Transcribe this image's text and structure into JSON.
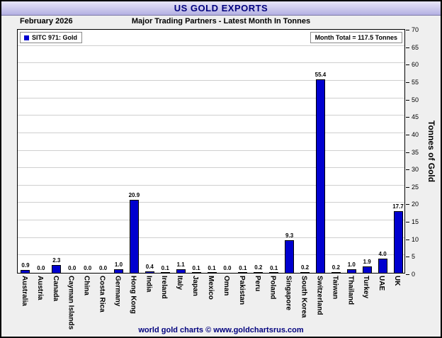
{
  "header": {
    "title": "US GOLD EXPORTS",
    "date": "February 2026",
    "subtitle": "Major Trading Partners - Latest Month In Tonnes"
  },
  "legend": {
    "label": "SITC 971: Gold",
    "swatch_color": "#0000cf"
  },
  "month_total": "Month Total = 117.5 Tonnes",
  "footer": {
    "text": "world gold charts © www.goldchartsrus.com"
  },
  "colors": {
    "bar": "#0000cf",
    "title_text": "#00007e",
    "titlebar_gradient_top": "#e8e6f9",
    "titlebar_gradient_bottom": "#b4b0e2"
  },
  "chart_data": {
    "type": "bar",
    "title": "US GOLD EXPORTS",
    "subtitle": "Major Trading Partners - Latest Month In Tonnes",
    "xlabel": "",
    "ylabel": "Tonnes of Gold",
    "ylim": [
      0,
      70
    ],
    "ytick_step": 5,
    "grid": true,
    "legend_position": "top-left",
    "bar_color": "#0000cf",
    "month_total_tonnes": 117.5,
    "categories": [
      "Australia",
      "Austria",
      "Canada",
      "Cayman Islands",
      "China",
      "Costa Rica",
      "Germany",
      "Hong Kong",
      "India",
      "Ireland",
      "Italy",
      "Japan",
      "Mexico",
      "Oman",
      "Pakistan",
      "Peru",
      "Poland",
      "Singapore",
      "South Korea",
      "Switzerland",
      "Taiwan",
      "Thailand",
      "Turkey",
      "UAE",
      "UK"
    ],
    "values": [
      0.9,
      0.0,
      2.3,
      0.0,
      0.0,
      0.0,
      1.0,
      20.9,
      0.4,
      0.1,
      1.1,
      0.1,
      0.1,
      0.0,
      0.1,
      0.2,
      0.1,
      9.3,
      0.2,
      55.4,
      0.2,
      1.0,
      1.9,
      4.0,
      17.7
    ]
  }
}
